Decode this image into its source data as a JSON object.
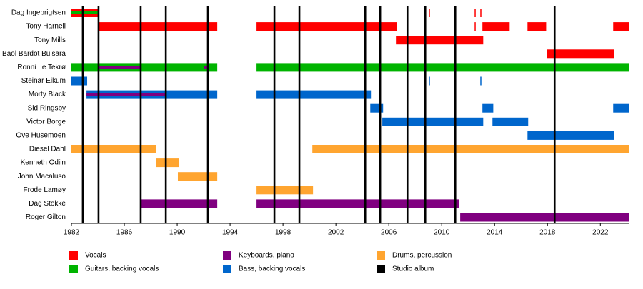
{
  "chart_data": {
    "type": "timeline",
    "categories": [
      "Dag Ingebrigtsen",
      "Tony Harnell",
      "Tony Mills",
      "Baol Bardot Bulsara",
      "Ronni Le Tekrø",
      "Steinar Eikum",
      "Morty Black",
      "Sid Ringsby",
      "Victor Borge",
      "Ove Husemoen",
      "Diesel Dahl",
      "Kenneth Odiin",
      "John Macaluso",
      "Frode Lamøy",
      "Dag Stokke",
      "Roger Gilton"
    ],
    "xlim": [
      1982,
      2024.2
    ],
    "xticks": [
      1982,
      1986,
      1990,
      1994,
      1998,
      2002,
      2006,
      2010,
      2014,
      2018,
      2022
    ],
    "series": [
      {
        "name": "Vocals",
        "color": "#ff0000",
        "values": [
          [
            [
              1982,
              1984.05
            ],
            [
              2009.03,
              2009.03
            ],
            [
              2012.49,
              2012.49
            ],
            [
              2012.92,
              2012.92
            ]
          ],
          [
            [
              1984.05,
              1993.03
            ],
            [
              1996.0,
              2006.6
            ],
            [
              2012.49,
              2012.49
            ],
            [
              2013.08,
              2015.14
            ],
            [
              2016.49,
              2017.9
            ],
            [
              2022.97,
              2024.2
            ]
          ],
          [
            [
              2006.54,
              2013.14
            ]
          ],
          [
            [
              2017.95,
              2023.03
            ]
          ],
          [],
          [],
          [],
          [],
          [],
          [],
          [],
          [],
          [],
          [],
          [],
          []
        ]
      },
      {
        "name": "Guitars, backing vocals",
        "color": "#00b400",
        "values": [
          [
            [
              1982,
              1984.05
            ]
          ],
          [],
          [],
          [],
          [
            [
              1982,
              1993.03
            ],
            [
              1996.0,
              2024.2
            ]
          ],
          [],
          [],
          [],
          [],
          [],
          [],
          [],
          [],
          [],
          [],
          []
        ]
      },
      {
        "name": "Keyboards, piano",
        "color": "#800080",
        "values": [
          [],
          [],
          [],
          [],
          [
            [
              1984.05,
              1987.3
            ],
            [
              1992.0,
              1992.27
            ]
          ],
          [],
          [
            [
              1983.14,
              1989.14
            ]
          ],
          [],
          [],
          [],
          [],
          [],
          [],
          [],
          [
            [
              1987.24,
              1993.03
            ],
            [
              1996.0,
              2011.3
            ]
          ],
          [
            [
              2011.4,
              2024.2
            ]
          ]
        ]
      },
      {
        "name": "Bass, backing vocals",
        "color": "#0066cc",
        "values": [
          [],
          [],
          [],
          [],
          [],
          [
            [
              1982,
              1983.19
            ],
            [
              2009.03,
              2009.03
            ],
            [
              2012.92,
              2012.92
            ]
          ],
          [
            [
              1983.14,
              1993.03
            ],
            [
              1996.0,
              2004.65
            ]
          ],
          [
            [
              2004.6,
              2005.57
            ],
            [
              2013.08,
              2013.9
            ],
            [
              2022.97,
              2024.2
            ]
          ],
          [
            [
              2005.51,
              2013.14
            ],
            [
              2013.84,
              2016.54
            ]
          ],
          [
            [
              2016.49,
              2023.03
            ]
          ],
          [],
          [],
          [],
          [],
          [],
          []
        ]
      },
      {
        "name": "Drums, percussion",
        "color": "#ffa530",
        "values": [
          [],
          [],
          [],
          [],
          [],
          [],
          [],
          [],
          [],
          [],
          [
            [
              1982,
              1988.38
            ],
            [
              2000.22,
              2024.2
            ]
          ],
          [
            [
              1988.38,
              1990.11
            ]
          ],
          [
            [
              1990.05,
              1993.03
            ]
          ],
          [
            [
              1996.0,
              2000.27
            ]
          ],
          [],
          []
        ]
      }
    ],
    "albums": {
      "name": "Studio album",
      "color": "#000000",
      "values": [
        1982.86,
        1984.05,
        1987.24,
        1989.14,
        1992.32,
        1997.35,
        1999.24,
        2004.22,
        2005.35,
        2007.41,
        2008.76,
        2011.03,
        2018.54
      ]
    }
  }
}
